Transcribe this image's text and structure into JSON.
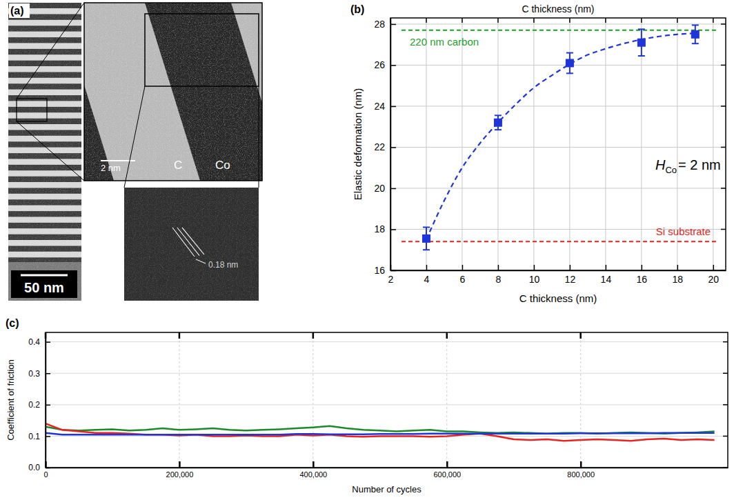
{
  "chart_data": [
    {
      "type": "image",
      "label": "(a)",
      "scale_bar": "50 nm",
      "inset_scale_bar": "2 nm",
      "layer_labels": [
        "C",
        "Co"
      ],
      "lattice_spacing": "0.18 nm"
    },
    {
      "type": "scatter",
      "label": "(b)",
      "xlabel": "C thickness (nm)",
      "xlabel_top": "C thickness (nm)",
      "ylabel": "Elastic deformation (nm)",
      "annotation": {
        "text": "H",
        "subscript": "Co",
        "suffix": "= 2 nm"
      },
      "xlim": [
        2,
        20.7
      ],
      "ylim": [
        16,
        28.3
      ],
      "xticks": [
        2,
        4,
        6,
        8,
        10,
        12,
        14,
        16,
        18,
        20
      ],
      "yticks": [
        16,
        18,
        20,
        22,
        24,
        26,
        28
      ],
      "grid": true,
      "series": [
        {
          "type": "scatter",
          "x": [
            4,
            8,
            12,
            16,
            19
          ],
          "values": [
            17.55,
            23.2,
            26.1,
            27.1,
            27.5
          ],
          "errors": [
            0.55,
            0.35,
            0.5,
            0.65,
            0.45
          ],
          "color": "#1f35d8",
          "marker": "square"
        },
        {
          "type": "line",
          "x": [
            4,
            5,
            6,
            7,
            8,
            9,
            10,
            11,
            12,
            13,
            14,
            15,
            16,
            17,
            18,
            19
          ],
          "values": [
            17.5,
            19.4,
            21.0,
            22.2,
            23.2,
            24.1,
            24.9,
            25.5,
            26.05,
            26.5,
            26.8,
            27.05,
            27.25,
            27.4,
            27.5,
            27.55
          ],
          "color": "#1f35d8",
          "line_style": "dashed"
        }
      ],
      "reference_lines": [
        {
          "value": 27.7,
          "label": "220 nm carbon",
          "color": "#1e9e2a"
        },
        {
          "value": 17.4,
          "label": "Si substrate",
          "color": "#e8231d"
        }
      ]
    },
    {
      "type": "line",
      "label": "(c)",
      "xlabel": "Number of cycles",
      "ylabel": "Coefficient of friction",
      "xlim": [
        0,
        1020000
      ],
      "ylim": [
        0,
        0.43
      ],
      "xticks": [
        0,
        {
          "value": 200000,
          "label": "200,000"
        },
        {
          "value": 400000,
          "label": "400,000"
        },
        {
          "value": 600000,
          "label": "600,000"
        },
        {
          "value": 800000,
          "label": "800,000"
        }
      ],
      "yticks": [
        {
          "value": 0,
          "label": "0.0"
        },
        0.1,
        0.2,
        0.3,
        0.4
      ],
      "grid": true,
      "x": [
        0,
        25000,
        50000,
        75000,
        100000,
        125000,
        150000,
        175000,
        200000,
        225000,
        250000,
        275000,
        300000,
        325000,
        350000,
        375000,
        400000,
        425000,
        450000,
        475000,
        500000,
        525000,
        550000,
        575000,
        600000,
        625000,
        650000,
        675000,
        700000,
        725000,
        750000,
        775000,
        800000,
        825000,
        850000,
        875000,
        900000,
        925000,
        950000,
        975000,
        1000000
      ],
      "series": [
        {
          "color": "#1a8a2a",
          "values": [
            0.13,
            0.12,
            0.118,
            0.12,
            0.122,
            0.118,
            0.12,
            0.125,
            0.12,
            0.122,
            0.125,
            0.12,
            0.118,
            0.12,
            0.122,
            0.125,
            0.128,
            0.132,
            0.125,
            0.12,
            0.118,
            0.115,
            0.118,
            0.12,
            0.115,
            0.115,
            0.112,
            0.11,
            0.112,
            0.11,
            0.108,
            0.11,
            0.11,
            0.108,
            0.11,
            0.112,
            0.11,
            0.108,
            0.11,
            0.112,
            0.115
          ]
        },
        {
          "color": "#e8231d",
          "values": [
            0.14,
            0.12,
            0.115,
            0.11,
            0.11,
            0.108,
            0.105,
            0.105,
            0.102,
            0.105,
            0.1,
            0.1,
            0.102,
            0.1,
            0.1,
            0.105,
            0.102,
            0.105,
            0.1,
            0.098,
            0.1,
            0.1,
            0.1,
            0.098,
            0.1,
            0.105,
            0.108,
            0.1,
            0.09,
            0.088,
            0.09,
            0.085,
            0.088,
            0.09,
            0.088,
            0.085,
            0.09,
            0.092,
            0.088,
            0.09,
            0.088
          ]
        },
        {
          "color": "#1f35d8",
          "values": [
            0.11,
            0.105,
            0.105,
            0.105,
            0.105,
            0.105,
            0.105,
            0.105,
            0.105,
            0.105,
            0.105,
            0.105,
            0.105,
            0.105,
            0.105,
            0.107,
            0.107,
            0.106,
            0.106,
            0.106,
            0.107,
            0.107,
            0.107,
            0.108,
            0.108,
            0.108,
            0.108,
            0.108,
            0.108,
            0.108,
            0.108,
            0.108,
            0.109,
            0.109,
            0.109,
            0.109,
            0.109,
            0.11,
            0.11,
            0.11,
            0.11
          ]
        }
      ]
    }
  ]
}
